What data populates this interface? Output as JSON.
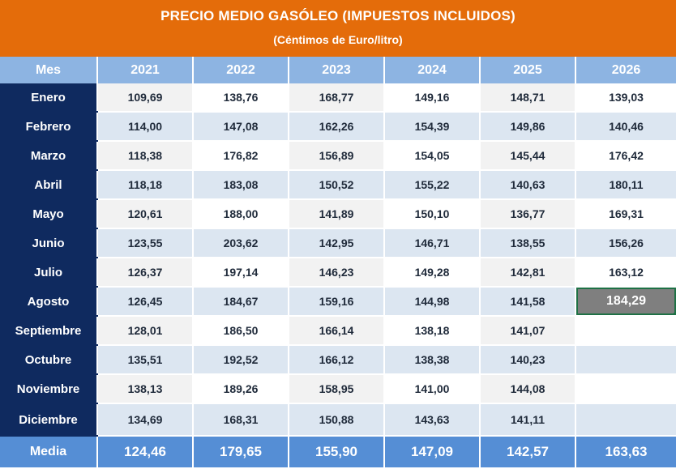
{
  "title": "PRECIO MEDIO GASÓLEO (IMPUESTOS INCLUIDOS)",
  "subtitle": "(Céntimos de Euro/litro)",
  "header": {
    "mes_label": "Mes",
    "years": [
      "2021",
      "2022",
      "2023",
      "2024",
      "2025",
      "2026"
    ]
  },
  "rows": [
    {
      "month": "Enero",
      "values": [
        "109,69",
        "138,76",
        "168,77",
        "149,16",
        "148,71",
        "139,03"
      ]
    },
    {
      "month": "Febrero",
      "values": [
        "114,00",
        "147,08",
        "162,26",
        "154,39",
        "149,86",
        "140,46"
      ]
    },
    {
      "month": "Marzo",
      "values": [
        "118,38",
        "176,82",
        "156,89",
        "154,05",
        "145,44",
        "176,42"
      ]
    },
    {
      "month": "Abril",
      "values": [
        "118,18",
        "183,08",
        "150,52",
        "155,22",
        "140,63",
        "180,11"
      ]
    },
    {
      "month": "Mayo",
      "values": [
        "120,61",
        "188,00",
        "141,89",
        "150,10",
        "136,77",
        "169,31"
      ]
    },
    {
      "month": "Junio",
      "values": [
        "123,55",
        "203,62",
        "142,95",
        "146,71",
        "138,55",
        "156,26"
      ]
    },
    {
      "month": "Julio",
      "values": [
        "126,37",
        "197,14",
        "146,23",
        "149,28",
        "142,81",
        "163,12"
      ]
    },
    {
      "month": "Agosto",
      "values": [
        "126,45",
        "184,67",
        "159,16",
        "144,98",
        "141,58",
        "184,29"
      ]
    },
    {
      "month": "Septiembre",
      "values": [
        "128,01",
        "186,50",
        "166,14",
        "138,18",
        "141,07",
        ""
      ]
    },
    {
      "month": "Octubre",
      "values": [
        "135,51",
        "192,52",
        "166,12",
        "138,38",
        "140,23",
        ""
      ]
    },
    {
      "month": "Noviembre",
      "values": [
        "138,13",
        "189,26",
        "158,95",
        "141,00",
        "144,08",
        ""
      ]
    },
    {
      "month": "Diciembre",
      "values": [
        "134,69",
        "168,31",
        "150,88",
        "143,63",
        "141,11",
        ""
      ]
    }
  ],
  "footer": {
    "label": "Media",
    "values": [
      "124,46",
      "179,65",
      "155,90",
      "147,09",
      "142,57",
      "163,63"
    ]
  },
  "selected_cell": {
    "month": "Agosto",
    "year": "2026"
  },
  "colors": {
    "title_bg": "#E46C0A",
    "header_bg": "#8DB4E2",
    "month_col_bg": "#0F2A5F",
    "row_light": "#F2F2F2",
    "row_blue": "#DCE6F1",
    "footer_bg": "#558ED5",
    "selected_bg": "#7F7F7F",
    "selection_border": "#1E7145"
  }
}
